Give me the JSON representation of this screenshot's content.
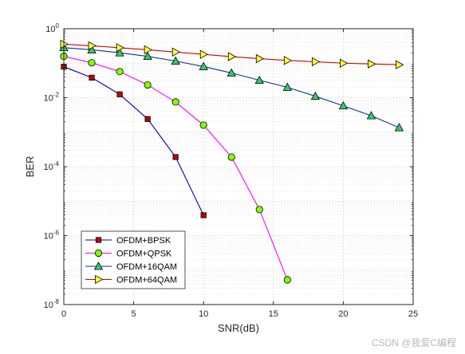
{
  "chart_data": {
    "type": "line",
    "xlabel": "SNR(dB)",
    "ylabel": "BER",
    "xlim": [
      0,
      25
    ],
    "ylim": [
      1e-08,
      1
    ],
    "yscale": "log",
    "grid": "on (major and minor)",
    "legend_location": "bottom-left",
    "x_ticks": [
      0,
      5,
      10,
      15,
      20,
      25
    ],
    "x_tick_labels": [
      "0",
      "5",
      "10",
      "15",
      "20",
      "25"
    ],
    "y_ticks": [
      1e-08,
      1e-06,
      0.0001,
      0.01,
      1
    ],
    "y_tick_labels": [
      {
        "base": "10",
        "exp": "-8"
      },
      {
        "base": "10",
        "exp": "-6"
      },
      {
        "base": "10",
        "exp": "-4"
      },
      {
        "base": "10",
        "exp": "-2"
      },
      {
        "base": "10",
        "exp": "0"
      }
    ],
    "series": [
      {
        "name": "OFDM+BPSK",
        "line_color": "#0000a0",
        "marker": "square",
        "marker_fill": "#c00000",
        "x": [
          0,
          2,
          4,
          6,
          8,
          10
        ],
        "y": [
          0.079,
          0.038,
          0.0125,
          0.0024,
          0.00019,
          3.9e-06
        ]
      },
      {
        "name": "OFDM+QPSK",
        "line_color": "#ff00ff",
        "marker": "circle",
        "marker_fill": "#80ff00",
        "x": [
          0,
          2,
          4,
          6,
          8,
          10,
          12,
          14,
          16
        ],
        "y": [
          0.158,
          0.103,
          0.057,
          0.0235,
          0.0075,
          0.0016,
          0.00019,
          5.7e-06,
          5.2e-08
        ]
      },
      {
        "name": "OFDM+16QAM",
        "line_color": "#003399",
        "marker": "triangle-up",
        "marker_fill": "#33cc66",
        "x": [
          0,
          2,
          4,
          6,
          8,
          10,
          12,
          14,
          16,
          18,
          20,
          22,
          24
        ],
        "y": [
          0.282,
          0.245,
          0.2,
          0.158,
          0.115,
          0.08,
          0.052,
          0.032,
          0.02,
          0.011,
          0.0058,
          0.003,
          0.00135
        ]
      },
      {
        "name": "OFDM+64QAM",
        "line_color": "#cc0000",
        "marker": "triangle-right",
        "marker_fill": "#ffff33",
        "x": [
          0,
          2,
          4,
          6,
          8,
          10,
          12,
          14,
          16,
          18,
          20,
          22,
          24
        ],
        "y": [
          0.355,
          0.32,
          0.28,
          0.245,
          0.21,
          0.18,
          0.155,
          0.135,
          0.12,
          0.11,
          0.1,
          0.095,
          0.09
        ]
      }
    ]
  },
  "watermark": "CSDN @我爱C编程"
}
